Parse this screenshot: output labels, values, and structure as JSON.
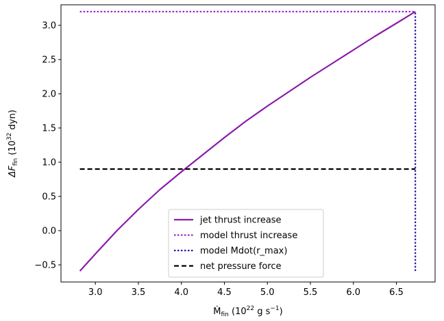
{
  "chart_data": {
    "type": "line",
    "xlabel": {
      "symbol": "Ṁ",
      "sub": "fin",
      "unit_open": " (10",
      "unit_exp": "22",
      "unit_mid": " g s",
      "unit_exp2": "−1",
      "unit_close": ")"
    },
    "ylabel": {
      "symbol": "ΔF",
      "sub": "fin",
      "unit_open": " (10",
      "unit_exp": "32",
      "unit_close": " dyn)"
    },
    "xlim": [
      2.6,
      6.95
    ],
    "ylim": [
      -0.75,
      3.3
    ],
    "xticks": [
      3.0,
      3.5,
      4.0,
      4.5,
      5.0,
      5.5,
      6.0,
      6.5
    ],
    "xtick_labels": [
      "3.0",
      "3.5",
      "4.0",
      "4.5",
      "5.0",
      "5.5",
      "6.0",
      "6.5"
    ],
    "yticks": [
      -0.5,
      0.0,
      0.5,
      1.0,
      1.5,
      2.0,
      2.5,
      3.0
    ],
    "ytick_labels": [
      "−0.5",
      "0.0",
      "0.5",
      "1.0",
      "1.5",
      "2.0",
      "2.5",
      "3.0"
    ],
    "legend_position": "lower-center",
    "grid": false,
    "series": [
      {
        "name": "jet thrust increase",
        "kind": "line",
        "color": "#8a1aaa",
        "style": "solid",
        "x": [
          2.82,
          3.0,
          3.25,
          3.5,
          3.75,
          4.0,
          4.25,
          4.5,
          4.75,
          5.0,
          5.25,
          5.5,
          5.75,
          6.0,
          6.25,
          6.5,
          6.72
        ],
        "y": [
          -0.59,
          -0.34,
          0.0,
          0.31,
          0.6,
          0.86,
          1.11,
          1.36,
          1.6,
          1.82,
          2.03,
          2.24,
          2.44,
          2.64,
          2.84,
          3.03,
          3.2
        ]
      },
      {
        "name": "model thrust increase",
        "kind": "hline",
        "color": "#9b24c4",
        "style": "dotted",
        "y": 3.2,
        "x": [
          2.82,
          6.72
        ]
      },
      {
        "name": "model Mdot(r_max)",
        "kind": "vline",
        "color": "#2a1aa8",
        "style": "dotted",
        "x": 6.72,
        "y": [
          -0.59,
          3.2
        ]
      },
      {
        "name": "net pressure force",
        "kind": "hline",
        "color": "#000000",
        "style": "dashed",
        "y": 0.9,
        "x": [
          2.82,
          6.72
        ]
      }
    ]
  }
}
